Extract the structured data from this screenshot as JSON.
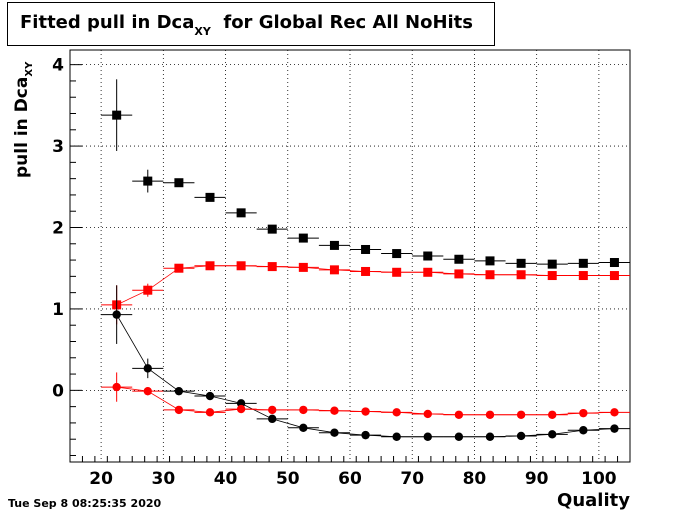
{
  "chart_data": {
    "type": "scatter",
    "title_main": "Fitted pull in Dca",
    "title_sub": "XY",
    "title_rest": "for Global Rec All NoHits",
    "ylabel_main": "pull in Dca",
    "ylabel_sub": "XY",
    "xlabel": "Quality",
    "xlim": [
      15,
      105
    ],
    "ylim": [
      -0.88,
      4.18
    ],
    "grid": true,
    "x_ticks": [
      20,
      30,
      40,
      50,
      60,
      70,
      80,
      90,
      100
    ],
    "y_ticks": [
      0,
      1,
      2,
      3,
      4
    ],
    "x_half_width": 2.5,
    "series": [
      {
        "color": "#000000",
        "marker": "square",
        "connect": false,
        "points": [
          {
            "x": 22.5,
            "y": 3.38,
            "err": 0.44
          },
          {
            "x": 27.5,
            "y": 2.57,
            "err": 0.14
          },
          {
            "x": 32.5,
            "y": 2.55,
            "err": 0.05
          },
          {
            "x": 37.5,
            "y": 2.37,
            "err": 0.03
          },
          {
            "x": 42.5,
            "y": 2.18,
            "err": 0.03
          },
          {
            "x": 47.5,
            "y": 1.98,
            "err": 0.02
          },
          {
            "x": 52.5,
            "y": 1.87,
            "err": 0.02
          },
          {
            "x": 57.5,
            "y": 1.78,
            "err": 0.02
          },
          {
            "x": 62.5,
            "y": 1.73,
            "err": 0.02
          },
          {
            "x": 67.5,
            "y": 1.68,
            "err": 0.02
          },
          {
            "x": 72.5,
            "y": 1.65,
            "err": 0.02
          },
          {
            "x": 77.5,
            "y": 1.61,
            "err": 0.02
          },
          {
            "x": 82.5,
            "y": 1.59,
            "err": 0.02
          },
          {
            "x": 87.5,
            "y": 1.56,
            "err": 0.02
          },
          {
            "x": 92.5,
            "y": 1.55,
            "err": 0.02
          },
          {
            "x": 97.5,
            "y": 1.56,
            "err": 0.02
          },
          {
            "x": 102.5,
            "y": 1.57,
            "err": 0.02
          }
        ]
      },
      {
        "color": "#ff0000",
        "marker": "square",
        "connect": true,
        "points": [
          {
            "x": 22.5,
            "y": 1.05,
            "err": 0.24
          },
          {
            "x": 27.5,
            "y": 1.23,
            "err": 0.08
          },
          {
            "x": 32.5,
            "y": 1.5,
            "err": 0.03
          },
          {
            "x": 37.5,
            "y": 1.53,
            "err": 0.02
          },
          {
            "x": 42.5,
            "y": 1.53,
            "err": 0.02
          },
          {
            "x": 47.5,
            "y": 1.52,
            "err": 0.02
          },
          {
            "x": 52.5,
            "y": 1.51,
            "err": 0.02
          },
          {
            "x": 57.5,
            "y": 1.48,
            "err": 0.02
          },
          {
            "x": 62.5,
            "y": 1.46,
            "err": 0.02
          },
          {
            "x": 67.5,
            "y": 1.45,
            "err": 0.02
          },
          {
            "x": 72.5,
            "y": 1.45,
            "err": 0.02
          },
          {
            "x": 77.5,
            "y": 1.43,
            "err": 0.02
          },
          {
            "x": 82.5,
            "y": 1.42,
            "err": 0.02
          },
          {
            "x": 87.5,
            "y": 1.42,
            "err": 0.02
          },
          {
            "x": 92.5,
            "y": 1.41,
            "err": 0.02
          },
          {
            "x": 97.5,
            "y": 1.41,
            "err": 0.02
          },
          {
            "x": 102.5,
            "y": 1.41,
            "err": 0.02
          }
        ]
      },
      {
        "color": "#000000",
        "marker": "circle",
        "connect": true,
        "points": [
          {
            "x": 22.5,
            "y": 0.93,
            "err": 0.36
          },
          {
            "x": 27.5,
            "y": 0.27,
            "err": 0.12
          },
          {
            "x": 32.5,
            "y": -0.01,
            "err": 0.03
          },
          {
            "x": 37.5,
            "y": -0.07,
            "err": 0.02
          },
          {
            "x": 42.5,
            "y": -0.16,
            "err": 0.02
          },
          {
            "x": 47.5,
            "y": -0.35,
            "err": 0.02
          },
          {
            "x": 52.5,
            "y": -0.46,
            "err": 0.02
          },
          {
            "x": 57.5,
            "y": -0.52,
            "err": 0.02
          },
          {
            "x": 62.5,
            "y": -0.55,
            "err": 0.02
          },
          {
            "x": 67.5,
            "y": -0.57,
            "err": 0.02
          },
          {
            "x": 72.5,
            "y": -0.57,
            "err": 0.02
          },
          {
            "x": 77.5,
            "y": -0.57,
            "err": 0.02
          },
          {
            "x": 82.5,
            "y": -0.57,
            "err": 0.02
          },
          {
            "x": 87.5,
            "y": -0.56,
            "err": 0.02
          },
          {
            "x": 92.5,
            "y": -0.54,
            "err": 0.02
          },
          {
            "x": 97.5,
            "y": -0.49,
            "err": 0.02
          },
          {
            "x": 102.5,
            "y": -0.47,
            "err": 0.02
          }
        ]
      },
      {
        "color": "#ff0000",
        "marker": "circle",
        "connect": true,
        "points": [
          {
            "x": 22.5,
            "y": 0.04,
            "err": 0.18
          },
          {
            "x": 27.5,
            "y": -0.01,
            "err": 0.05
          },
          {
            "x": 32.5,
            "y": -0.24,
            "err": 0.02
          },
          {
            "x": 37.5,
            "y": -0.27,
            "err": 0.02
          },
          {
            "x": 42.5,
            "y": -0.23,
            "err": 0.02
          },
          {
            "x": 47.5,
            "y": -0.24,
            "err": 0.02
          },
          {
            "x": 52.5,
            "y": -0.24,
            "err": 0.02
          },
          {
            "x": 57.5,
            "y": -0.25,
            "err": 0.02
          },
          {
            "x": 62.5,
            "y": -0.26,
            "err": 0.02
          },
          {
            "x": 67.5,
            "y": -0.27,
            "err": 0.02
          },
          {
            "x": 72.5,
            "y": -0.29,
            "err": 0.02
          },
          {
            "x": 77.5,
            "y": -0.3,
            "err": 0.02
          },
          {
            "x": 82.5,
            "y": -0.3,
            "err": 0.02
          },
          {
            "x": 87.5,
            "y": -0.3,
            "err": 0.02
          },
          {
            "x": 92.5,
            "y": -0.3,
            "err": 0.02
          },
          {
            "x": 97.5,
            "y": -0.28,
            "err": 0.02
          },
          {
            "x": 102.5,
            "y": -0.27,
            "err": 0.02
          }
        ]
      }
    ]
  },
  "timestamp": "Tue Sep  8 08:25:35 2020"
}
